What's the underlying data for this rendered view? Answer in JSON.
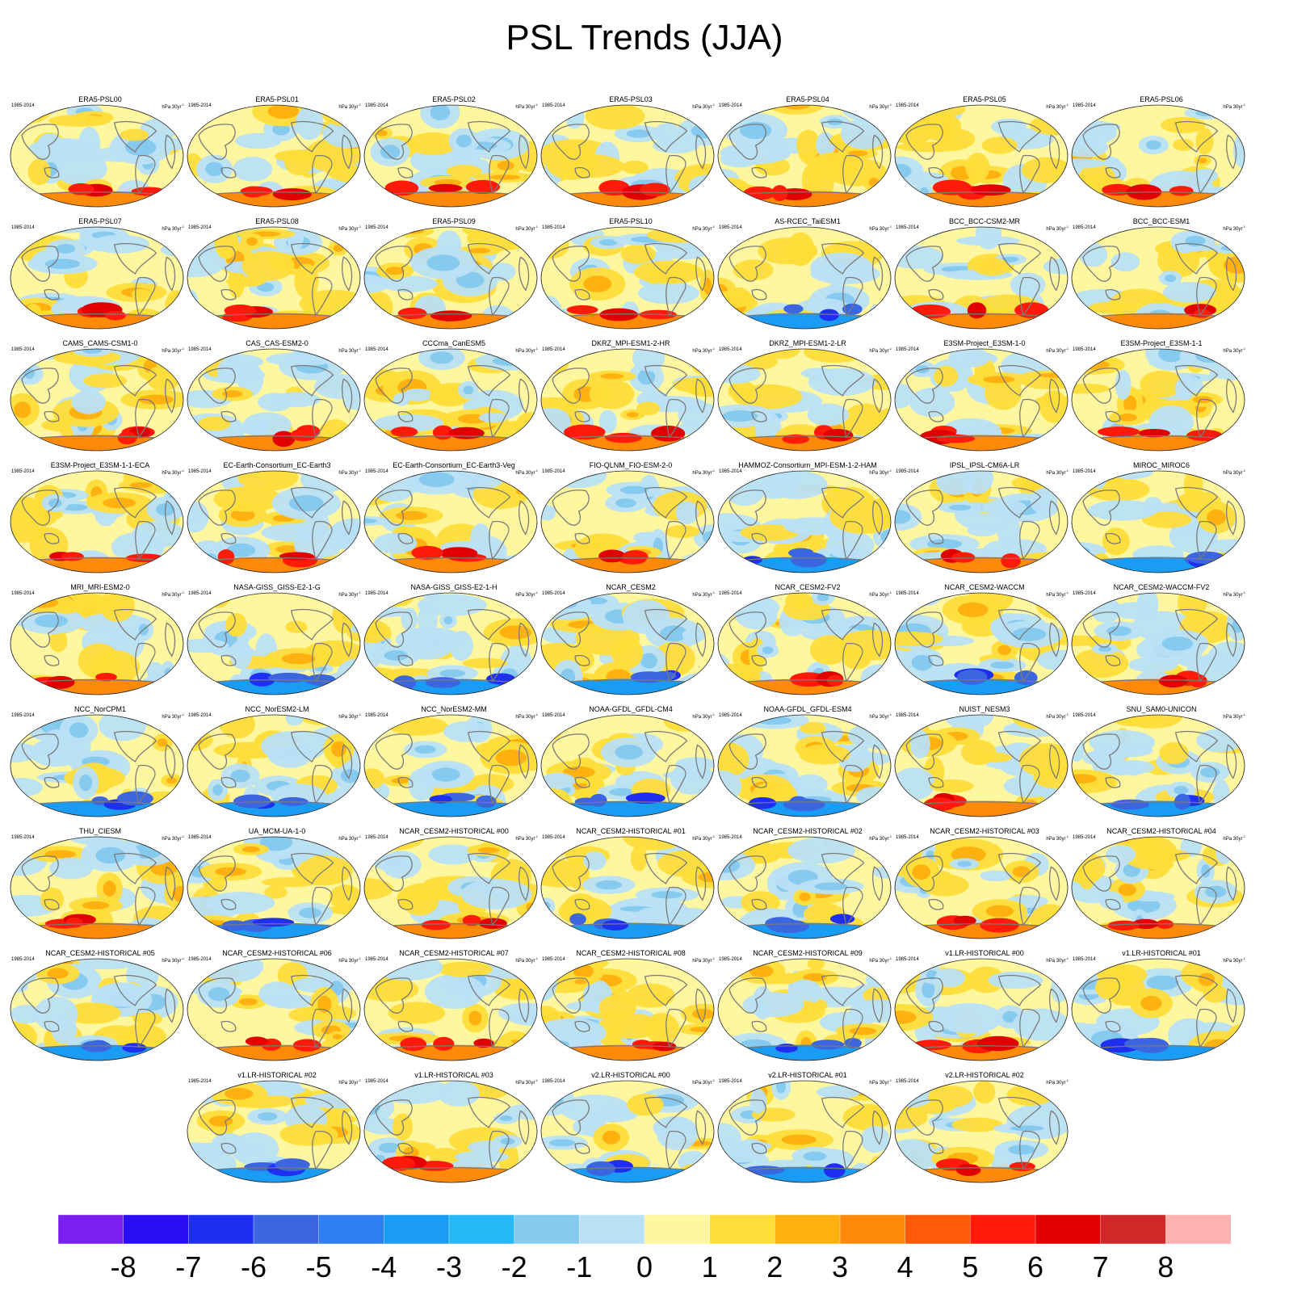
{
  "chart_data": {
    "type": "heatmap",
    "title": "PSL Trends (JJA)",
    "panel_period": "1985-2014",
    "panel_units": "hPa 30yr",
    "panel_units_exponent": "-1",
    "colorbar": {
      "ticks": [
        "-8",
        "-7",
        "-6",
        "-5",
        "-4",
        "-3",
        "-2",
        "-1",
        "0",
        "1",
        "2",
        "3",
        "4",
        "5",
        "6",
        "7",
        "8"
      ],
      "colors": [
        "#7a1ff0",
        "#2a0cf5",
        "#1f2ff0",
        "#3b66e0",
        "#2f7ff0",
        "#1a9cf5",
        "#26b9f7",
        "#86caf0",
        "#b9e0f5",
        "#fff7a0",
        "#ffdd3a",
        "#ffb20f",
        "#ff8a0a",
        "#ff5a08",
        "#ff1a0a",
        "#e00000",
        "#d02828",
        "#ffb0b0"
      ]
    },
    "panels": [
      {
        "name": "ERA5-PSL00"
      },
      {
        "name": "ERA5-PSL01"
      },
      {
        "name": "ERA5-PSL02"
      },
      {
        "name": "ERA5-PSL03"
      },
      {
        "name": "ERA5-PSL04"
      },
      {
        "name": "ERA5-PSL05"
      },
      {
        "name": "ERA5-PSL06"
      },
      {
        "name": "ERA5-PSL07"
      },
      {
        "name": "ERA5-PSL08"
      },
      {
        "name": "ERA5-PSL09"
      },
      {
        "name": "ERA5-PSL10"
      },
      {
        "name": "AS-RCEC_TaiESM1"
      },
      {
        "name": "BCC_BCC-CSM2-MR"
      },
      {
        "name": "BCC_BCC-ESM1"
      },
      {
        "name": "CAMS_CAMS-CSM1-0"
      },
      {
        "name": "CAS_CAS-ESM2-0"
      },
      {
        "name": "CCCma_CanESM5"
      },
      {
        "name": "DKRZ_MPI-ESM1-2-HR"
      },
      {
        "name": "DKRZ_MPI-ESM1-2-LR"
      },
      {
        "name": "E3SM-Project_E3SM-1-0"
      },
      {
        "name": "E3SM-Project_E3SM-1-1"
      },
      {
        "name": "E3SM-Project_E3SM-1-1-ECA"
      },
      {
        "name": "EC-Earth-Consortium_EC-Earth3"
      },
      {
        "name": "EC-Earth-Consortium_EC-Earth3-Veg"
      },
      {
        "name": "FIO-QLNM_FIO-ESM-2-0"
      },
      {
        "name": "HAMMOZ-Consortium_MPI-ESM-1-2-HAM"
      },
      {
        "name": "IPSL_IPSL-CM6A-LR"
      },
      {
        "name": "MIROC_MIROC6"
      },
      {
        "name": "MRI_MRI-ESM2-0"
      },
      {
        "name": "NASA-GISS_GISS-E2-1-G"
      },
      {
        "name": "NASA-GISS_GISS-E2-1-H"
      },
      {
        "name": "NCAR_CESM2"
      },
      {
        "name": "NCAR_CESM2-FV2"
      },
      {
        "name": "NCAR_CESM2-WACCM"
      },
      {
        "name": "NCAR_CESM2-WACCM-FV2"
      },
      {
        "name": "NCC_NorCPM1"
      },
      {
        "name": "NCC_NorESM2-LM"
      },
      {
        "name": "NCC_NorESM2-MM"
      },
      {
        "name": "NOAA-GFDL_GFDL-CM4"
      },
      {
        "name": "NOAA-GFDL_GFDL-ESM4"
      },
      {
        "name": "NUIST_NESM3"
      },
      {
        "name": "SNU_SAM0-UNICON"
      },
      {
        "name": "THU_CIESM"
      },
      {
        "name": "UA_MCM-UA-1-0"
      },
      {
        "name": "NCAR_CESM2-HISTORICAL  #00"
      },
      {
        "name": "NCAR_CESM2-HISTORICAL  #01"
      },
      {
        "name": "NCAR_CESM2-HISTORICAL  #02"
      },
      {
        "name": "NCAR_CESM2-HISTORICAL  #03"
      },
      {
        "name": "NCAR_CESM2-HISTORICAL  #04"
      },
      {
        "name": "NCAR_CESM2-HISTORICAL  #05"
      },
      {
        "name": "NCAR_CESM2-HISTORICAL  #06"
      },
      {
        "name": "NCAR_CESM2-HISTORICAL  #07"
      },
      {
        "name": "NCAR_CESM2-HISTORICAL  #08"
      },
      {
        "name": "NCAR_CESM2-HISTORICAL  #09"
      },
      {
        "name": "v1.LR-HISTORICAL  #00"
      },
      {
        "name": "v1.LR-HISTORICAL  #01"
      },
      {
        "name": "v1.LR-HISTORICAL  #02"
      },
      {
        "name": "v1.LR-HISTORICAL  #03"
      },
      {
        "name": "v2.LR-HISTORICAL  #00"
      },
      {
        "name": "v2.LR-HISTORICAL  #01"
      },
      {
        "name": "v2.LR-HISTORICAL  #02"
      }
    ]
  }
}
